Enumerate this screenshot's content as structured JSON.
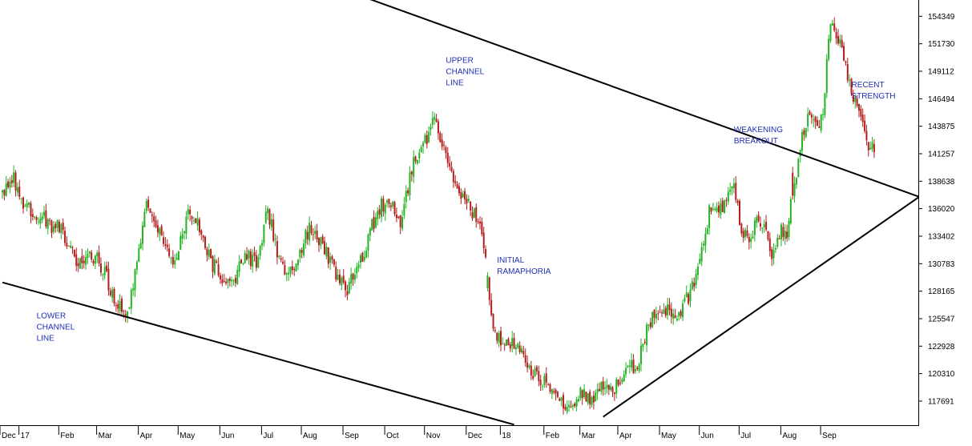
{
  "chart_data": {
    "type": "candlestick",
    "title": "",
    "xlabel": "",
    "ylabel": "",
    "ylim": [
      115400,
      155900
    ],
    "y_ticks": [
      117691,
      120310,
      122928,
      125547,
      128165,
      130783,
      133402,
      136020,
      138638,
      141257,
      143875,
      146494,
      149112,
      151730,
      154349
    ],
    "x_ticks": [
      {
        "label": "Dec",
        "idx": 0
      },
      {
        "label": "17",
        "idx": 10
      },
      {
        "label": "Feb",
        "idx": 31
      },
      {
        "label": "Mar",
        "idx": 51
      },
      {
        "label": "Apr",
        "idx": 73
      },
      {
        "label": "May",
        "idx": 94
      },
      {
        "label": "Jun",
        "idx": 116
      },
      {
        "label": "Jul",
        "idx": 138
      },
      {
        "label": "Aug",
        "idx": 159
      },
      {
        "label": "Sep",
        "idx": 181
      },
      {
        "label": "Oct",
        "idx": 203
      },
      {
        "label": "Nov",
        "idx": 224
      },
      {
        "label": "Dec",
        "idx": 246
      },
      {
        "label": "18",
        "idx": 264
      },
      {
        "label": "Feb",
        "idx": 287
      },
      {
        "label": "Mar",
        "idx": 306
      },
      {
        "label": "Apr",
        "idx": 326
      },
      {
        "label": "May",
        "idx": 348
      },
      {
        "label": "Jun",
        "idx": 369
      },
      {
        "label": "Jul",
        "idx": 390
      },
      {
        "label": "Aug",
        "idx": 412
      },
      {
        "label": "Sep",
        "idx": 433
      }
    ],
    "close_path": [
      [
        0,
        137500
      ],
      [
        6,
        139000
      ],
      [
        10,
        136500
      ],
      [
        18,
        135500
      ],
      [
        25,
        134500
      ],
      [
        31,
        134000
      ],
      [
        40,
        131000
      ],
      [
        50,
        131500
      ],
      [
        58,
        128000
      ],
      [
        66,
        125500
      ],
      [
        70,
        129500
      ],
      [
        76,
        137000
      ],
      [
        82,
        134000
      ],
      [
        86,
        132000
      ],
      [
        92,
        131000
      ],
      [
        98,
        136000
      ],
      [
        104,
        134500
      ],
      [
        110,
        131000
      ],
      [
        116,
        129500
      ],
      [
        121,
        128800
      ],
      [
        128,
        131500
      ],
      [
        134,
        131000
      ],
      [
        140,
        136000
      ],
      [
        146,
        131000
      ],
      [
        152,
        130000
      ],
      [
        158,
        132000
      ],
      [
        162,
        134500
      ],
      [
        168,
        133000
      ],
      [
        176,
        130000
      ],
      [
        182,
        128200
      ],
      [
        190,
        131500
      ],
      [
        198,
        136000
      ],
      [
        204,
        137000
      ],
      [
        210,
        134000
      ],
      [
        216,
        140000
      ],
      [
        222,
        142000
      ],
      [
        228,
        144500
      ],
      [
        233,
        142000
      ],
      [
        238,
        139000
      ],
      [
        242,
        137000
      ],
      [
        246,
        136500
      ],
      [
        252,
        134000
      ],
      [
        255,
        131000
      ],
      [
        257,
        127000
      ],
      [
        260,
        124000
      ],
      [
        266,
        123200
      ],
      [
        272,
        122800
      ],
      [
        278,
        120600
      ],
      [
        284,
        119800
      ],
      [
        290,
        118800
      ],
      [
        296,
        117000
      ],
      [
        300,
        117500
      ],
      [
        306,
        118500
      ],
      [
        312,
        118000
      ],
      [
        318,
        119600
      ],
      [
        324,
        119000
      ],
      [
        330,
        120500
      ],
      [
        336,
        121500
      ],
      [
        340,
        124500
      ],
      [
        344,
        126000
      ],
      [
        350,
        126500
      ],
      [
        356,
        126000
      ],
      [
        362,
        127500
      ],
      [
        368,
        131000
      ],
      [
        374,
        136500
      ],
      [
        380,
        136000
      ],
      [
        386,
        138000
      ],
      [
        390,
        134000
      ],
      [
        394,
        132500
      ],
      [
        398,
        135000
      ],
      [
        402,
        134000
      ],
      [
        406,
        131500
      ],
      [
        411,
        134000
      ],
      [
        414,
        133500
      ],
      [
        417,
        137500
      ],
      [
        421,
        142000
      ],
      [
        425,
        145000
      ],
      [
        429,
        143500
      ],
      [
        433,
        145500
      ],
      [
        437,
        153500
      ],
      [
        441,
        152000
      ],
      [
        445,
        149500
      ],
      [
        449,
        147000
      ],
      [
        453,
        145000
      ],
      [
        457,
        142000
      ],
      [
        460,
        141800
      ]
    ],
    "total_bars": 461,
    "trendlines": [
      {
        "name": "upper-channel-line",
        "from": [
          -22,
          170000
        ],
        "to": [
          520,
          134800
        ]
      },
      {
        "name": "lower-channel-line",
        "from": [
          0,
          129000
        ],
        "to": [
          270,
          115450
        ]
      },
      {
        "name": "support-line",
        "from": [
          317,
          116200
        ],
        "to": [
          520,
          141700
        ]
      }
    ],
    "annotations": [
      {
        "name": "upper-channel-label",
        "lines": [
          "UPPER",
          "CHANNEL",
          "LINE"
        ],
        "idx": 234,
        "y": 149900
      },
      {
        "name": "lower-channel-label",
        "lines": [
          "LOWER",
          "CHANNEL",
          "LINE"
        ],
        "idx": 18,
        "y": 125600
      },
      {
        "name": "initial-ramaphoria-label",
        "lines": [
          "INITIAL",
          "RAMAPHORIA"
        ],
        "idx": 261,
        "y": 130900
      },
      {
        "name": "weakening-breakout-label",
        "lines": [
          "WEAKENING",
          "BREAKOUT"
        ],
        "idx": 386,
        "y": 143300
      },
      {
        "name": "recent-strength-label",
        "lines": [
          "RECENT",
          "STRENGTH"
        ],
        "idx": 448,
        "y": 147600
      }
    ],
    "up_color": "#22b422",
    "down_color": "#b41e1e",
    "line_color": "#000000",
    "annotation_color": "#1f2fb8"
  }
}
